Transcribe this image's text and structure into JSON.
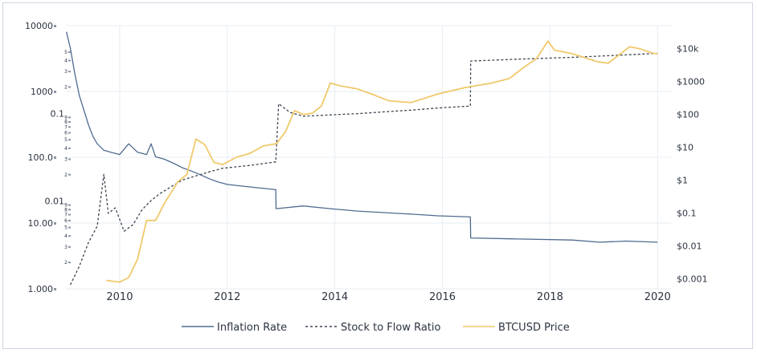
{
  "chart_data": {
    "type": "line",
    "title": "",
    "xlabel": "",
    "ylabel": "",
    "x_ticks": [
      "2010",
      "2012",
      "2014",
      "2016",
      "2018",
      "2020"
    ],
    "xlim": [
      "2009-01-01",
      "2020-04-01"
    ],
    "grid": true,
    "legend_position": "bottom",
    "colors": {
      "inflation": "#4f6b8f",
      "s2f": "#3d4450",
      "btc": "#f0c96a",
      "grid": "#e7ecf3",
      "text": "#2b3340"
    },
    "axes": {
      "left_outer": {
        "scale": "log",
        "range": [
          1,
          10000
        ],
        "major_ticks": [
          {
            "value": 10000,
            "label": "10000"
          },
          {
            "value": 1000,
            "label": "1000"
          },
          {
            "value": 100,
            "label": "100.0"
          },
          {
            "value": 10,
            "label": "10.00"
          },
          {
            "value": 1,
            "label": "1.000"
          }
        ]
      },
      "left_inner": {
        "scale": "log",
        "range": [
          0.001,
          1
        ],
        "major_ticks": [
          {
            "value": 0.1,
            "label": "0.1"
          },
          {
            "value": 0.01,
            "label": "0.01"
          }
        ],
        "minor_labels": [
          "5",
          "4",
          "3",
          "2",
          "9",
          "8",
          "7",
          "6",
          "5",
          "4",
          "3",
          "2",
          "9",
          "8",
          "7",
          "6",
          "5",
          "4",
          "3",
          "2",
          "9",
          "8",
          "7",
          "6",
          "5",
          "4",
          "3",
          "2"
        ]
      },
      "right": {
        "scale": "log",
        "range": [
          0.0005,
          50000
        ],
        "ticks": [
          {
            "value": 10000,
            "label": "$10k"
          },
          {
            "value": 1000,
            "label": "$1000"
          },
          {
            "value": 100,
            "label": "$100"
          },
          {
            "value": 10,
            "label": "$10"
          },
          {
            "value": 1,
            "label": "$1"
          },
          {
            "value": 0.1,
            "label": "$0.1"
          },
          {
            "value": 0.01,
            "label": "$0.01"
          },
          {
            "value": 0.001,
            "label": "$0.001"
          }
        ]
      }
    },
    "series": [
      {
        "name": "Inflation Rate",
        "axis": "left_inner",
        "style": "solid",
        "points": [
          [
            "2009-01-05",
            0.85
          ],
          [
            "2009-02-01",
            0.55
          ],
          [
            "2009-03-01",
            0.28
          ],
          [
            "2009-04-01",
            0.16
          ],
          [
            "2009-05-01",
            0.11
          ],
          [
            "2009-06-01",
            0.075
          ],
          [
            "2009-07-01",
            0.055
          ],
          [
            "2009-08-01",
            0.045
          ],
          [
            "2009-09-15",
            0.038
          ],
          [
            "2009-11-01",
            0.036
          ],
          [
            "2010-01-01",
            0.034
          ],
          [
            "2010-03-01",
            0.045
          ],
          [
            "2010-05-01",
            0.036
          ],
          [
            "2010-07-01",
            0.034
          ],
          [
            "2010-08-01",
            0.045
          ],
          [
            "2010-09-01",
            0.032
          ],
          [
            "2010-11-01",
            0.03
          ],
          [
            "2011-01-01",
            0.027
          ],
          [
            "2011-03-01",
            0.024
          ],
          [
            "2011-05-01",
            0.022
          ],
          [
            "2011-07-01",
            0.02
          ],
          [
            "2011-09-01",
            0.018
          ],
          [
            "2011-11-01",
            0.0165
          ],
          [
            "2012-01-01",
            0.0155
          ],
          [
            "2012-06-01",
            0.0145
          ],
          [
            "2012-11-26",
            0.0135
          ],
          [
            "2012-11-28",
            0.0082
          ],
          [
            "2013-06-01",
            0.0088
          ],
          [
            "2013-12-01",
            0.0082
          ],
          [
            "2014-06-01",
            0.0077
          ],
          [
            "2014-12-01",
            0.0074
          ],
          [
            "2015-06-01",
            0.0071
          ],
          [
            "2015-12-01",
            0.0068
          ],
          [
            "2016-07-08",
            0.0066
          ],
          [
            "2016-07-10",
            0.0038
          ],
          [
            "2017-06-01",
            0.0037
          ],
          [
            "2018-06-01",
            0.0036
          ],
          [
            "2018-12-01",
            0.0034
          ],
          [
            "2019-06-01",
            0.0035
          ],
          [
            "2020-01-01",
            0.0034
          ]
        ]
      },
      {
        "name": "Stock to Flow Ratio",
        "axis": "left_outer",
        "style": "dashed",
        "points": [
          [
            "2009-02-01",
            1.15
          ],
          [
            "2009-04-01",
            2.2
          ],
          [
            "2009-06-01",
            5.0
          ],
          [
            "2009-08-01",
            9.0
          ],
          [
            "2009-09-15",
            55
          ],
          [
            "2009-10-15",
            14
          ],
          [
            "2009-12-01",
            17
          ],
          [
            "2010-02-01",
            7.5
          ],
          [
            "2010-04-01",
            9.5
          ],
          [
            "2010-06-01",
            16
          ],
          [
            "2010-08-01",
            22
          ],
          [
            "2010-10-01",
            28
          ],
          [
            "2010-12-01",
            34
          ],
          [
            "2011-03-01",
            45
          ],
          [
            "2011-06-01",
            52
          ],
          [
            "2011-09-01",
            60
          ],
          [
            "2011-12-01",
            68
          ],
          [
            "2012-06-01",
            75
          ],
          [
            "2012-11-26",
            85
          ],
          [
            "2012-12-15",
            650
          ],
          [
            "2013-03-01",
            480
          ],
          [
            "2013-06-01",
            420
          ],
          [
            "2013-12-01",
            440
          ],
          [
            "2014-06-01",
            460
          ],
          [
            "2014-12-01",
            490
          ],
          [
            "2015-06-01",
            520
          ],
          [
            "2015-12-01",
            560
          ],
          [
            "2016-07-08",
            600
          ],
          [
            "2016-07-10",
            2900
          ],
          [
            "2017-06-01",
            3100
          ],
          [
            "2018-06-01",
            3300
          ],
          [
            "2019-06-01",
            3600
          ],
          [
            "2020-01-01",
            3800
          ]
        ]
      },
      {
        "name": "BTCUSD Price",
        "axis": "right",
        "style": "solid",
        "points": [
          [
            "2009-10-01",
            0.0009
          ],
          [
            "2010-01-01",
            0.0008
          ],
          [
            "2010-03-01",
            0.0011
          ],
          [
            "2010-05-01",
            0.004
          ],
          [
            "2010-07-01",
            0.06
          ],
          [
            "2010-09-01",
            0.06
          ],
          [
            "2010-11-01",
            0.2
          ],
          [
            "2011-02-01",
            0.9
          ],
          [
            "2011-04-01",
            1.5
          ],
          [
            "2011-06-01",
            18
          ],
          [
            "2011-08-01",
            12
          ],
          [
            "2011-10-01",
            3.5
          ],
          [
            "2011-12-01",
            3.0
          ],
          [
            "2012-03-01",
            5.0
          ],
          [
            "2012-06-01",
            6.5
          ],
          [
            "2012-09-01",
            11
          ],
          [
            "2012-12-01",
            13
          ],
          [
            "2013-02-01",
            30
          ],
          [
            "2013-04-01",
            130
          ],
          [
            "2013-06-01",
            100
          ],
          [
            "2013-08-01",
            110
          ],
          [
            "2013-10-01",
            180
          ],
          [
            "2013-12-01",
            900
          ],
          [
            "2014-02-01",
            750
          ],
          [
            "2014-06-01",
            600
          ],
          [
            "2014-10-01",
            380
          ],
          [
            "2015-01-01",
            260
          ],
          [
            "2015-06-01",
            230
          ],
          [
            "2015-12-01",
            420
          ],
          [
            "2016-06-01",
            650
          ],
          [
            "2016-12-01",
            900
          ],
          [
            "2017-04-01",
            1250
          ],
          [
            "2017-07-01",
            2600
          ],
          [
            "2017-10-01",
            5000
          ],
          [
            "2017-12-17",
            17000
          ],
          [
            "2018-02-01",
            9000
          ],
          [
            "2018-06-01",
            7000
          ],
          [
            "2018-11-20",
            4000
          ],
          [
            "2019-02-01",
            3600
          ],
          [
            "2019-06-25",
            11500
          ],
          [
            "2019-09-01",
            10000
          ],
          [
            "2019-12-01",
            7200
          ],
          [
            "2020-01-01",
            7000
          ]
        ]
      }
    ]
  },
  "legend": {
    "items": [
      {
        "label": "Inflation Rate",
        "color": "#4f6b8f",
        "style": "solid"
      },
      {
        "label": "Stock to Flow Ratio",
        "color": "#3d4450",
        "style": "dashed"
      },
      {
        "label": "BTCUSD Price",
        "color": "#f0c96a",
        "style": "solid"
      }
    ]
  }
}
